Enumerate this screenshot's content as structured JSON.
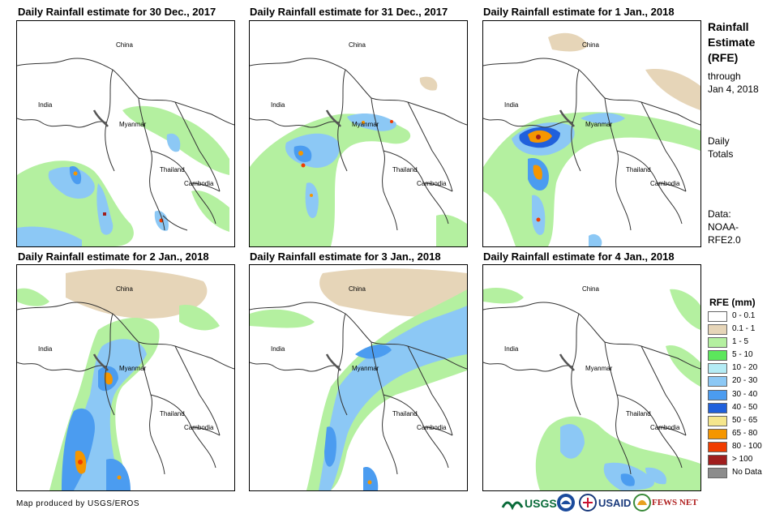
{
  "panels": [
    {
      "title": "Daily Rainfall estimate for 30 Dec., 2017"
    },
    {
      "title": "Daily Rainfall estimate for 31 Dec., 2017"
    },
    {
      "title": "Daily Rainfall estimate for 1 Jan., 2018"
    },
    {
      "title": "Daily Rainfall estimate for 2 Jan., 2018"
    },
    {
      "title": "Daily Rainfall estimate for 3 Jan., 2018"
    },
    {
      "title": "Daily Rainfall estimate for 4 Jan., 2018"
    }
  ],
  "places": {
    "china": "China",
    "india": "India",
    "myanmar": "Myanmar",
    "thailand": "Thailand",
    "cambodia": "Cambodia"
  },
  "sidebar": {
    "title_lines": [
      "Rainfall",
      "Estimate",
      "(RFE)"
    ],
    "through": "through",
    "through_date": "Jan 4, 2018",
    "daily_1": "Daily",
    "daily_2": "Totals",
    "data_1": "Data:",
    "data_2": "NOAA-",
    "data_3": "RFE2.0"
  },
  "legend": {
    "title": "RFE (mm)",
    "items": [
      {
        "label": "0 - 0.1",
        "color": "#ffffff"
      },
      {
        "label": "0.1 - 1",
        "color": "#e6d5b8"
      },
      {
        "label": "1 - 5",
        "color": "#b4f0a0"
      },
      {
        "label": "5 - 10",
        "color": "#5ce65c"
      },
      {
        "label": "10 - 20",
        "color": "#b4ecf5"
      },
      {
        "label": "20 - 30",
        "color": "#8cc8f5"
      },
      {
        "label": "30 - 40",
        "color": "#4b9cf0"
      },
      {
        "label": "40 - 50",
        "color": "#2060dc"
      },
      {
        "label": "50 - 65",
        "color": "#f5e68c"
      },
      {
        "label": "65 - 80",
        "color": "#f59600"
      },
      {
        "label": "80 - 100",
        "color": "#f03c00"
      },
      {
        "label": "> 100",
        "color": "#a01e1e"
      },
      {
        "label": "No Data",
        "color": "#8c8c8c"
      }
    ]
  },
  "footer": {
    "credit": "Map produced by USGS/EROS",
    "usgs": "USGS",
    "usaid": "USAID",
    "fewsnet": "FEWS NET"
  }
}
